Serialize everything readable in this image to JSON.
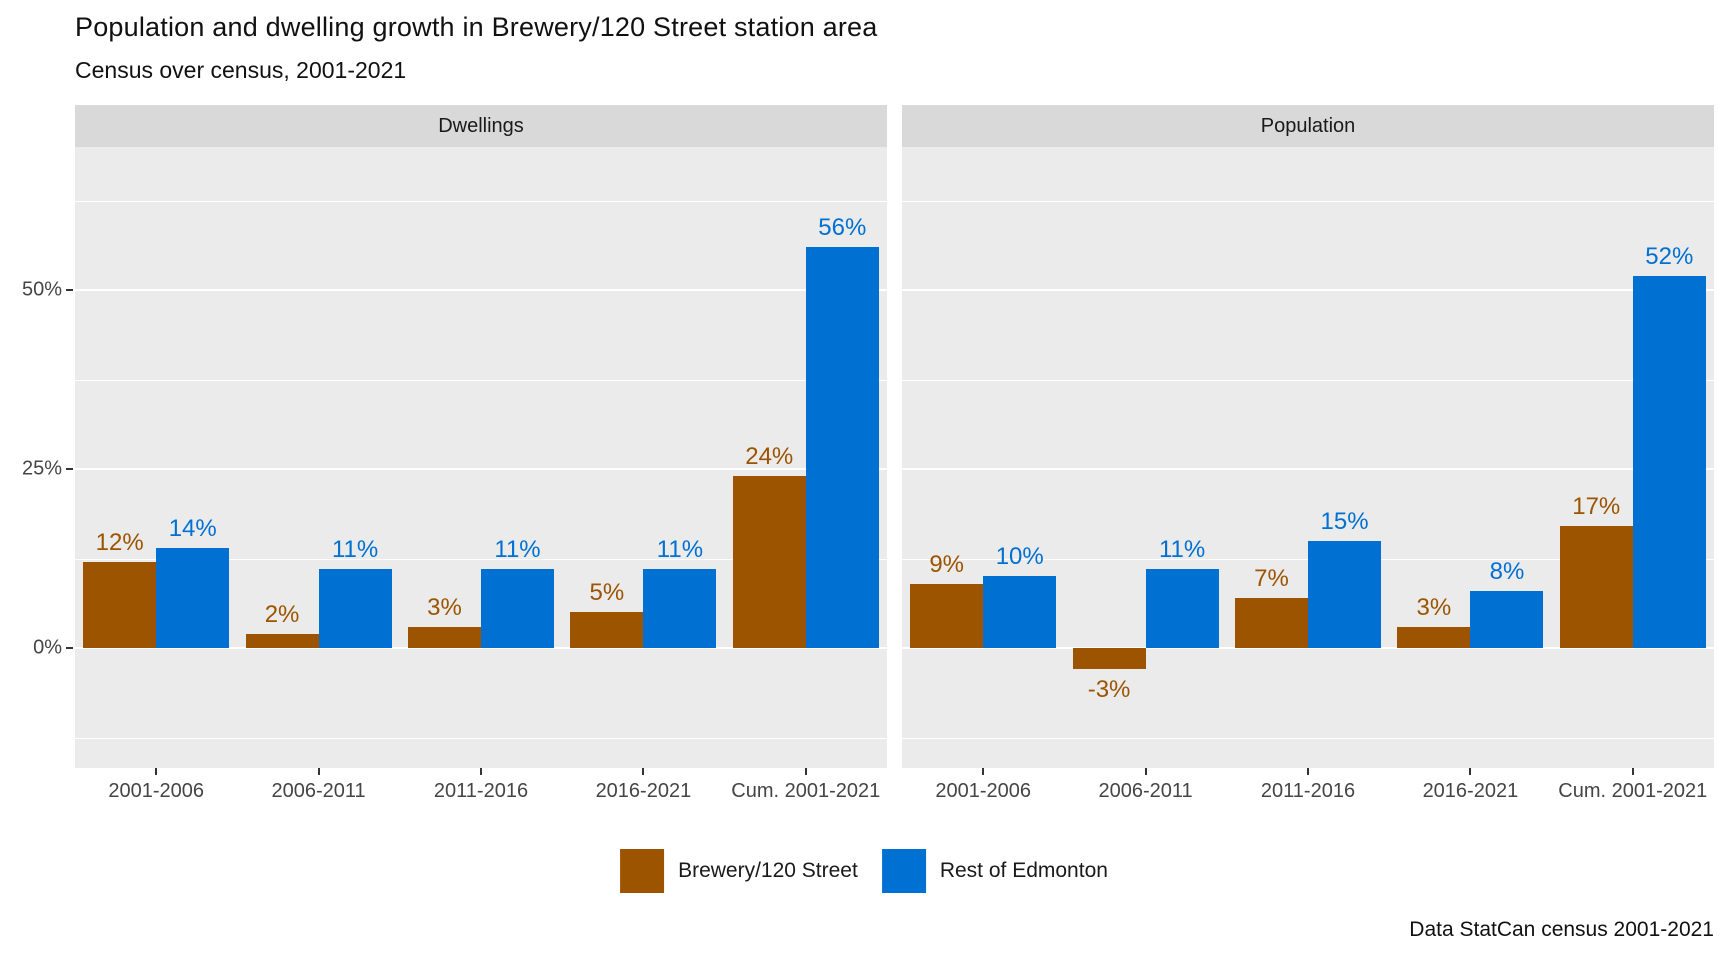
{
  "title": "Population and dwelling growth in Brewery/120 Street station area",
  "subtitle": "Census over census, 2001-2021",
  "caption": "Data StatCan census 2001-2021",
  "colors": {
    "brewery": "#9C5400",
    "rest_of_edmonton": "#0070D2",
    "panel_background": "#EBEBEB",
    "strip_background": "#D9D9D9",
    "gridline": "#FFFFFF",
    "axis_text": "#454545"
  },
  "legend": {
    "items": [
      {
        "label": "Brewery/120 Street",
        "color": "#9C5400"
      },
      {
        "label": "Rest of Edmonton",
        "color": "#0070D2"
      }
    ]
  },
  "y_axis": {
    "ticks": [
      {
        "label": "50%",
        "value": 50
      },
      {
        "label": "25%",
        "value": 25
      },
      {
        "label": "0%",
        "value": 0
      }
    ]
  },
  "chart_data": {
    "type": "bar",
    "categories": [
      "2001-2006",
      "2006-2011",
      "2011-2016",
      "2016-2021",
      "Cum. 2001-2021"
    ],
    "facets": [
      {
        "label": "Dwellings",
        "series": [
          {
            "name": "Brewery/120 Street",
            "color": "#9C5400",
            "values": [
              12,
              2,
              3,
              5,
              24
            ]
          },
          {
            "name": "Rest of Edmonton",
            "color": "#0070D2",
            "values": [
              14,
              11,
              11,
              11,
              56
            ]
          }
        ]
      },
      {
        "label": "Population",
        "series": [
          {
            "name": "Brewery/120 Street",
            "color": "#9C5400",
            "values": [
              9,
              -3,
              7,
              3,
              17
            ]
          },
          {
            "name": "Rest of Edmonton",
            "color": "#0070D2",
            "values": [
              10,
              11,
              15,
              8,
              52
            ]
          }
        ]
      }
    ],
    "value_suffix": "%",
    "value_labels": true,
    "ylim": [
      -17,
      70
    ],
    "gridlines": {
      "major": [
        0,
        25,
        50
      ],
      "minor": [
        -12.5,
        12.5,
        37.5,
        62.5
      ]
    },
    "legend_position": "bottom",
    "title": "Population and dwelling growth in Brewery/120 Street station area",
    "subtitle": "Census over census, 2001-2021",
    "xlabel": "",
    "ylabel": ""
  }
}
